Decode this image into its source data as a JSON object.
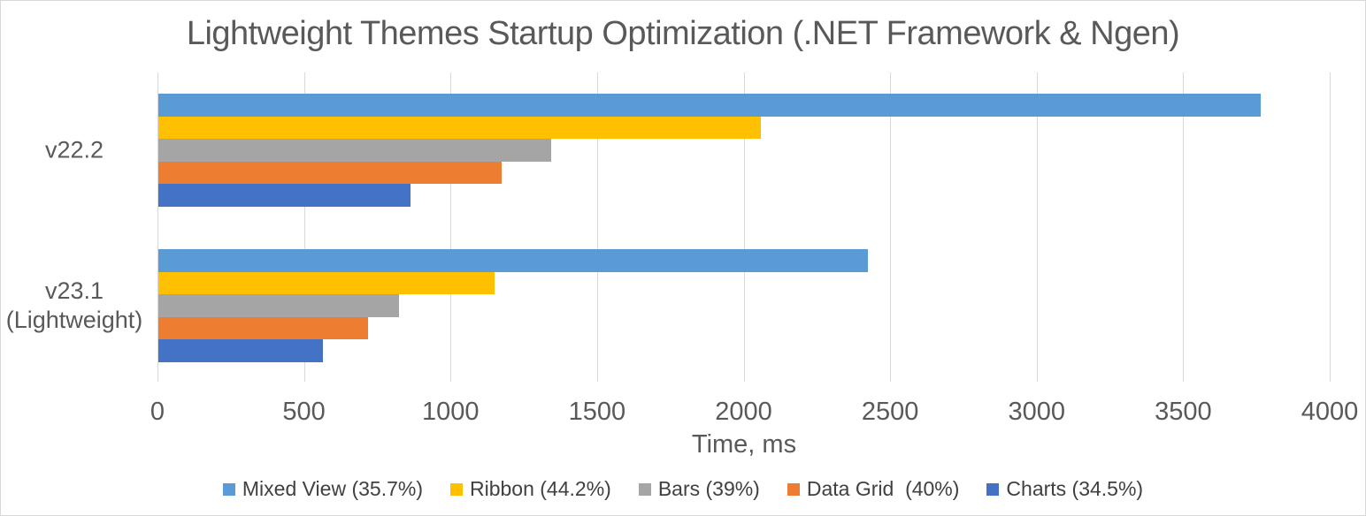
{
  "title": "Lightweight Themes Startup Optimization (.NET Framework & Ngen)",
  "chart_data": {
    "type": "bar",
    "orientation": "horizontal",
    "title": "Lightweight Themes Startup Optimization (.NET Framework & Ngen)",
    "xlabel": "Time, ms",
    "ylabel": "",
    "xlim": [
      0,
      4000
    ],
    "xticks": [
      0,
      500,
      1000,
      1500,
      2000,
      2500,
      3000,
      3500,
      4000
    ],
    "grid": true,
    "legend_position": "bottom",
    "categories": [
      "v22.2",
      "v23.1\n(Lightweight)"
    ],
    "series": [
      {
        "name": "Mixed View (35.7%)",
        "color": "#5B9BD5",
        "values": [
          3760,
          2420
        ]
      },
      {
        "name": "Ribbon (44.2%)",
        "color": "#FFC000",
        "values": [
          2055,
          1146
        ]
      },
      {
        "name": "Bars (39%)",
        "color": "#A5A5A5",
        "values": [
          1340,
          822
        ]
      },
      {
        "name": "Data Grid  (40%)",
        "color": "#ED7D31",
        "values": [
          1172,
          714
        ]
      },
      {
        "name": "Charts (34.5%)",
        "color": "#4472C4",
        "values": [
          861,
          563
        ]
      }
    ]
  },
  "colors": {
    "text": "#595959",
    "gridline": "#D9D9D9",
    "border": "#D7D7D7",
    "background": "#FFFFFF"
  }
}
